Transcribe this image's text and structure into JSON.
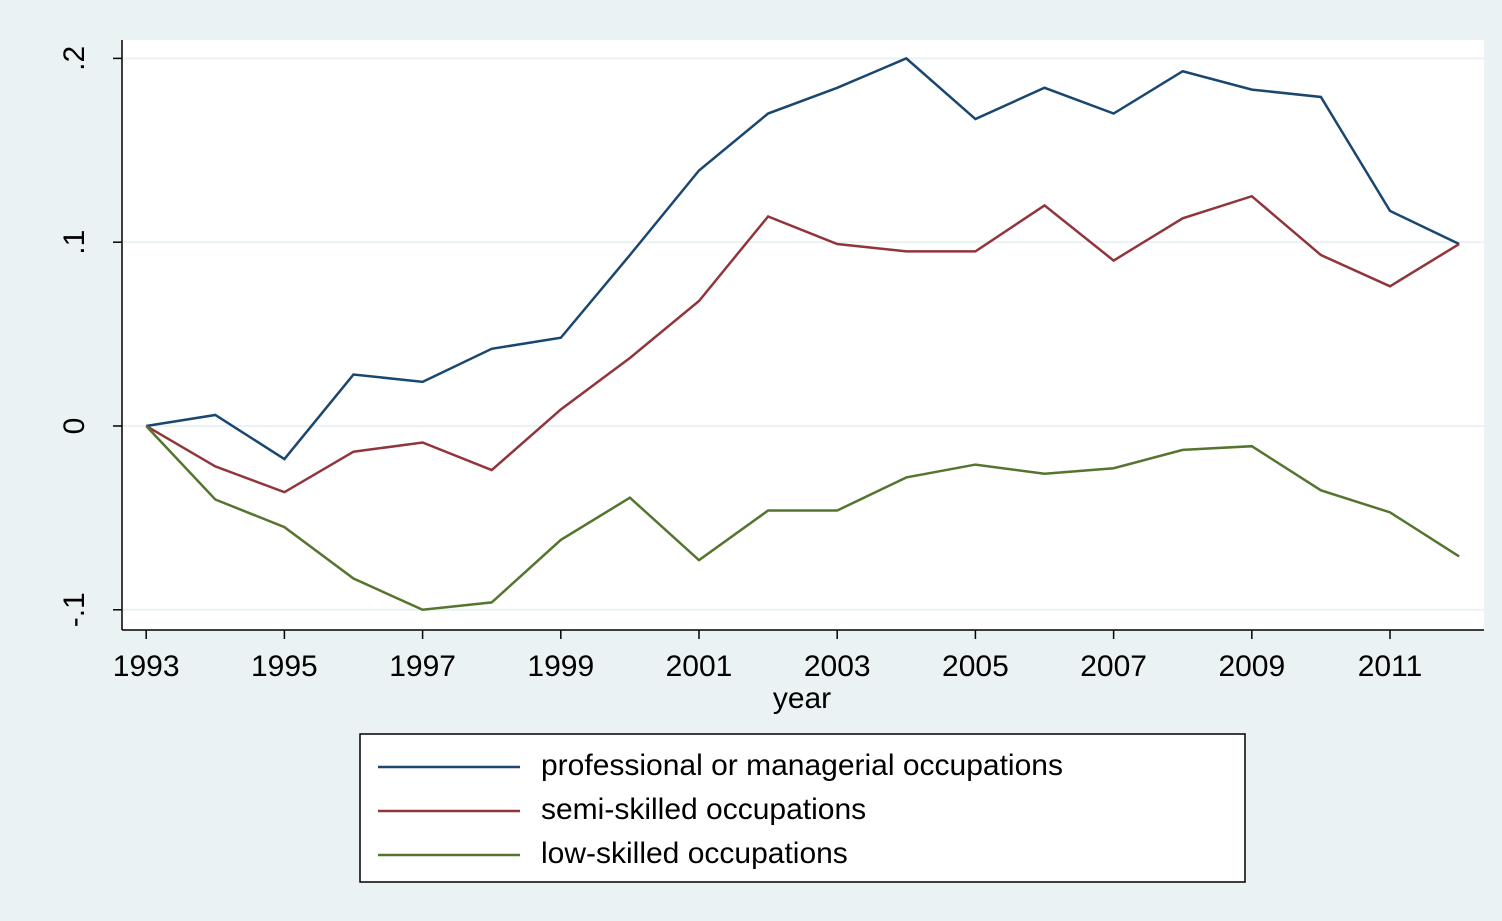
{
  "chart_data": {
    "type": "line",
    "x_label": "year",
    "x": [
      1993,
      1994,
      1995,
      1996,
      1997,
      1998,
      1999,
      2000,
      2001,
      2002,
      2003,
      2004,
      2005,
      2006,
      2007,
      2008,
      2009,
      2010,
      2011,
      2012
    ],
    "series": [
      {
        "name": "professional or managerial occupations",
        "color": "#1a476f",
        "values": [
          0,
          0.006,
          -0.018,
          0.028,
          0.024,
          0.042,
          0.048,
          0.093,
          0.139,
          0.17,
          0.184,
          0.2,
          0.167,
          0.184,
          0.17,
          0.193,
          0.183,
          0.179,
          0.117,
          0.099
        ]
      },
      {
        "name": "semi-skilled occupations",
        "color": "#90353b",
        "values": [
          0,
          -0.022,
          -0.036,
          -0.014,
          -0.009,
          -0.024,
          0.009,
          0.037,
          0.068,
          0.114,
          0.099,
          0.095,
          0.095,
          0.12,
          0.09,
          0.113,
          0.125,
          0.093,
          0.076,
          0.099
        ]
      },
      {
        "name": "low-skilled occupations",
        "color": "#55752f",
        "values": [
          0,
          -0.04,
          -0.055,
          -0.083,
          -0.1,
          -0.096,
          -0.062,
          -0.039,
          -0.073,
          -0.046,
          -0.046,
          -0.028,
          -0.021,
          -0.026,
          -0.023,
          -0.013,
          -0.011,
          -0.035,
          -0.047,
          -0.071
        ]
      }
    ],
    "xlim": [
      1992.65,
      2012.36
    ],
    "xticks": [
      1993,
      1995,
      1997,
      1999,
      2001,
      2003,
      2005,
      2007,
      2009,
      2011
    ],
    "ylim": [
      -0.111,
      0.21
    ],
    "yticks": [
      {
        "value": -0.1,
        "label": "-.1"
      },
      0,
      {
        "value": 0.1,
        "label": ".1"
      },
      {
        "value": 0.2,
        "label": ".2"
      }
    ],
    "grid": true,
    "legend_position": "bottom"
  }
}
